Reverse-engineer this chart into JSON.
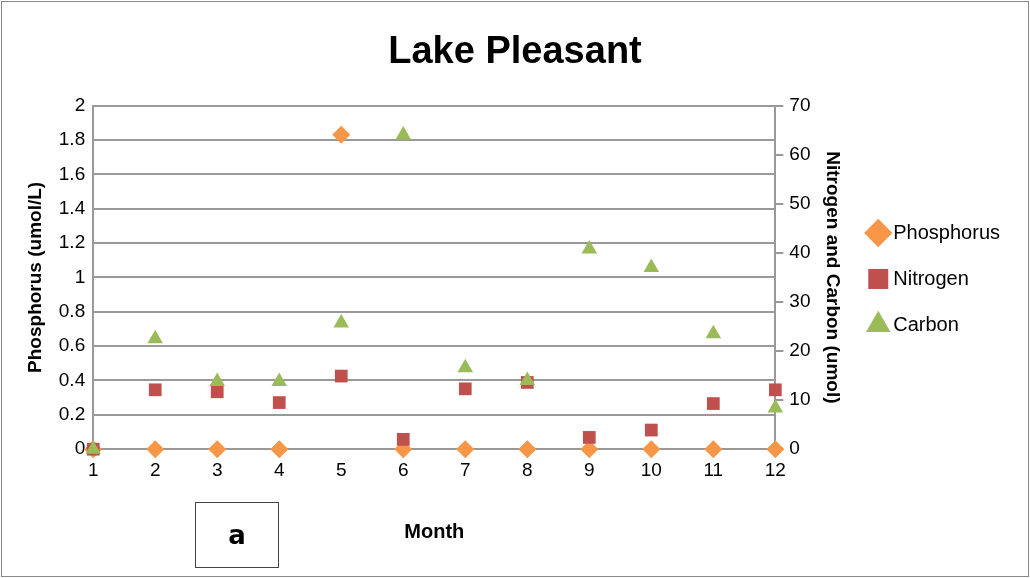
{
  "chart_data": {
    "type": "scatter",
    "title": "Lake Pleasant",
    "xlabel": "Month",
    "ylabel": "Phosphorus (umol/L)",
    "y2label": "Nitrogen and Carbon (umol)",
    "x": [
      1,
      2,
      3,
      4,
      5,
      6,
      7,
      8,
      9,
      10,
      11,
      12
    ],
    "series": [
      {
        "name": "Phosphorus",
        "color": "#f79646",
        "marker": "diamond",
        "values": [
          0,
          0,
          0,
          0,
          1.83,
          0,
          0,
          0,
          0,
          0,
          0,
          0
        ]
      },
      {
        "name": "Nitrogen",
        "color": "#c0504d",
        "marker": "square",
        "axis": "y2",
        "values": [
          0,
          12.1,
          11.7,
          9.5,
          14.9,
          2,
          12.3,
          13.6,
          2.4,
          3.9,
          9.3,
          12.1
        ]
      },
      {
        "name": "Carbon",
        "color": "#9bbb59",
        "marker": "triangle",
        "axis": "y2",
        "values": [
          0,
          22.5,
          13.8,
          13.8,
          25.7,
          64,
          16.6,
          14,
          40.8,
          37,
          23.5,
          8.4
        ]
      }
    ],
    "xlim": [
      1,
      12
    ],
    "xticks": [
      1,
      2,
      3,
      4,
      5,
      6,
      7,
      8,
      9,
      10,
      11,
      12
    ],
    "ylim": [
      0,
      2
    ],
    "yticks": [
      0,
      0.2,
      0.4,
      0.6,
      0.8,
      1,
      1.2,
      1.4,
      1.6,
      1.8,
      2
    ],
    "y2lim": [
      0,
      70
    ],
    "y2ticks": [
      0,
      10,
      20,
      30,
      40,
      50,
      60,
      70
    ],
    "grid": "y",
    "legend": "right",
    "annotations": [
      "a"
    ]
  }
}
